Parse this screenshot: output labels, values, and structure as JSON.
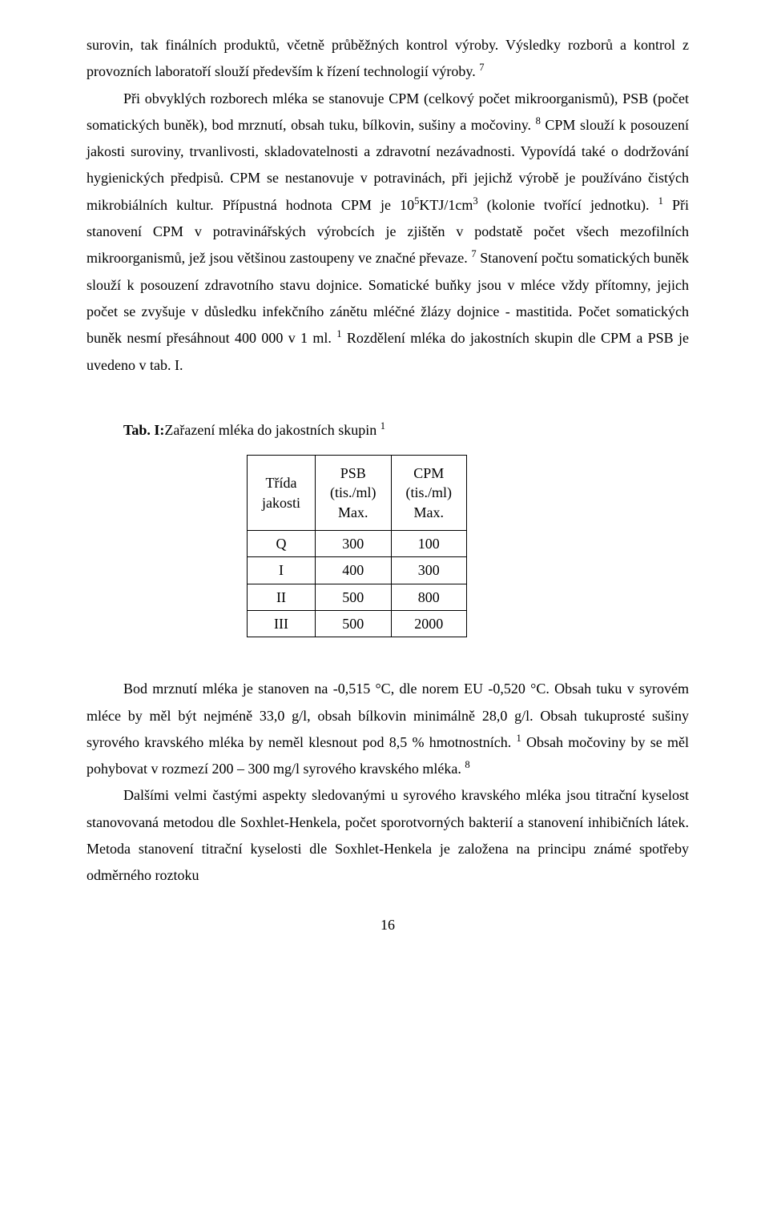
{
  "para1_1": "surovin, tak finálních produktů, včetně průběžných kontrol výroby. Výsledky rozborů a kontrol z provozních laboratoří slouží především k řízení technologií výroby.",
  "ref7a": "7",
  "para1_2": "Při obvyklých rozborech mléka se stanovuje CPM (celkový počet mikroorganismů), PSB (počet somatických buněk), bod mrznutí, obsah tuku, bílkovin, sušiny a močoviny.",
  "ref8a": "8",
  "para1_3": " CPM slouží k posouzení jakosti suroviny, trvanlivosti, skladovatelnosti a zdravotní nezávadnosti. Vypovídá také o dodržování hygienických předpisů. CPM se nestanovuje v potravinách, při jejichž výrobě je používáno čistých mikrobiálních kultur. Přípustná hodnota CPM je 10",
  "sup5": "5",
  "para1_3b": "KTJ/1cm",
  "sup3": "3",
  "para1_3c": " (kolonie tvořící jednotku).",
  "ref1a": "1",
  "para1_4": " Při stanovení CPM v potravinářských výrobcích je zjištěn v podstatě počet všech mezofilních mikroorganismů, jež jsou většinou zastoupeny ve značné převaze.",
  "ref7b": "7",
  "para1_5": " Stanovení počtu somatických buněk slouží k posouzení zdravotního stavu dojnice. Somatické buňky jsou v mléce vždy přítomny, jejich počet se zvyšuje v důsledku infekčního zánětu mléčné žlázy dojnice - mastitida. Počet somatických buněk nesmí přesáhnout 400 000 v 1 ml.",
  "ref1b": "1",
  "para1_6": " Rozdělení mléka do jakostních skupin dle CPM a PSB je uvedeno v tab. I.",
  "tab_label": "Tab. I:",
  "tab_title": "Zařazení mléka do jakostních skupin ",
  "tab_ref": "1",
  "table": {
    "h1a": "Třída",
    "h1b": "jakosti",
    "h2a": "PSB",
    "h2b": "(tis./ml)",
    "h2c": "Max.",
    "h3a": "CPM",
    "h3b": "(tis./ml)",
    "h3c": "Max.",
    "rows": [
      {
        "c1": "Q",
        "c2": "300",
        "c3": "100"
      },
      {
        "c1": "I",
        "c2": "400",
        "c3": "300"
      },
      {
        "c1": "II",
        "c2": "500",
        "c3": "800"
      },
      {
        "c1": "III",
        "c2": "500",
        "c3": "2000"
      }
    ]
  },
  "para2_1": "Bod mrznutí mléka je stanoven na -0,515 °C, dle norem EU -0,520 °C. Obsah tuku v syrovém mléce by měl být nejméně 33,0 g/l, obsah bílkovin minimálně 28,0 g/l. Obsah tukuprosté sušiny syrového kravského mléka by neměl klesnout pod 8,5 % hmotnostních.",
  "ref1c": "1",
  "para2_2": " Obsah močoviny by se měl pohybovat v rozmezí 200 – 300 mg/l syrového kravského mléka.",
  "ref8b": "8",
  "para3": "Dalšími velmi častými aspekty sledovanými u syrového kravského mléka jsou titrační kyselost stanovovaná metodou dle Soxhlet-Henkela, počet sporotvorných bakterií a stanovení inhibičních látek. Metoda stanovení titrační kyselosti dle Soxhlet-Henkela je založena na principu známé spotřeby odměrného roztoku",
  "page_num": "16"
}
